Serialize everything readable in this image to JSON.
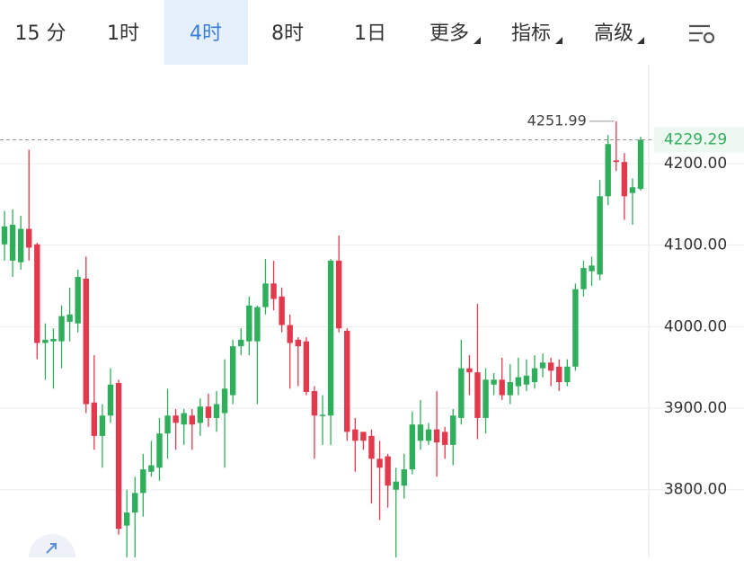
{
  "toolbar": {
    "tabs": [
      "15 分",
      "1时",
      "4时",
      "8时",
      "1日",
      "更多",
      "指标",
      "高级"
    ],
    "selected": 2
  },
  "chart_data": {
    "type": "candlestick",
    "open": [
      4101,
      4081,
      4079,
      4120,
      4101,
      3980,
      3982,
      3982,
      4006,
      4004,
      4059,
      3907,
      3866,
      3891,
      3931,
      3756,
      3772,
      3796,
      3822,
      3827,
      3869,
      3891,
      3880,
      3891,
      3882,
      3902,
      3888,
      3894,
      3916,
      3976,
      3982,
      3982,
      4024,
      4053,
      4037,
      4002,
      3984,
      3982,
      3921,
      3891,
      3891,
      4081,
      3995,
      3874,
      3871,
      3866,
      3838,
      3841,
      3800,
      3805,
      3825,
      3860,
      3860,
      3874,
      3871,
      3855,
      3888,
      3949,
      3944,
      3888,
      3929,
      3935,
      3916,
      3927,
      3929,
      3932,
      3949,
      3956,
      3951,
      3932,
      3951,
      4046,
      4068,
      4064,
      4160,
      4204,
      4202,
      4164,
      4169
    ],
    "high": [
      4142,
      4144,
      4136,
      4217,
      4103,
      4004,
      3998,
      4026,
      4048,
      4070,
      4086,
      3965,
      3905,
      3949,
      3935,
      3800,
      3816,
      3844,
      3860,
      3888,
      3924,
      3899,
      3899,
      3899,
      3912,
      3918,
      3921,
      3960,
      3984,
      3998,
      4037,
      4026,
      4083,
      4081,
      4048,
      4015,
      3987,
      3987,
      3927,
      3916,
      4083,
      4112,
      3998,
      3888,
      3871,
      3874,
      3860,
      3844,
      3827,
      3844,
      3896,
      3910,
      3882,
      3921,
      3877,
      3899,
      3984,
      3965,
      4028,
      3949,
      3943,
      3962,
      3954,
      3962,
      3960,
      3965,
      3967,
      3962,
      3960,
      3960,
      4053,
      4081,
      4086,
      4180,
      4235,
      4251.99,
      4213,
      4182,
      4233
    ],
    "low": [
      4081,
      4061,
      4070,
      4081,
      3960,
      3935,
      3924,
      3949,
      3982,
      3993,
      3894,
      3849,
      3827,
      3882,
      3745,
      3717,
      3717,
      3767,
      3816,
      3811,
      3838,
      3849,
      3855,
      3849,
      3866,
      3877,
      3871,
      3827,
      3905,
      3965,
      3965,
      3905,
      4015,
      4020,
      3993,
      3924,
      3927,
      3916,
      3838,
      3855,
      3855,
      3993,
      3860,
      3822,
      3849,
      3783,
      3763,
      3778,
      3717,
      3789,
      3819,
      3849,
      3855,
      3816,
      3838,
      3830,
      3880,
      3916,
      3862,
      3869,
      3916,
      3910,
      3905,
      3916,
      3921,
      3924,
      3938,
      3927,
      3921,
      3927,
      3946,
      4037,
      4050,
      4057,
      4149,
      4191,
      4131,
      4125,
      4167
    ],
    "close": [
      4123,
      4125,
      4120,
      4097,
      3980,
      3984,
      3985,
      4013,
      4015,
      4061,
      3905,
      3866,
      3891,
      3929,
      3752,
      3772,
      3796,
      3825,
      3830,
      3869,
      3891,
      3882,
      3894,
      3880,
      3902,
      3888,
      3905,
      3924,
      3976,
      3984,
      4026,
      4024,
      4053,
      4034,
      4002,
      3980,
      3976,
      3920,
      3891,
      3892,
      4081,
      3998,
      3871,
      3860,
      3860,
      3838,
      3827,
      3805,
      3810,
      3825,
      3880,
      3880,
      3874,
      3858,
      3855,
      3891,
      3949,
      3944,
      3888,
      3935,
      3935,
      3916,
      3932,
      3938,
      3940,
      3949,
      3956,
      3946,
      3932,
      3951,
      4046,
      4072,
      4075,
      4160,
      4224,
      4202,
      4160,
      4171,
      4229.29
    ],
    "ylim": [
      3717,
      4318
    ],
    "yticks": [
      {
        "value": 3800,
        "label": "3800.00"
      },
      {
        "value": 3900,
        "label": "3900.00"
      },
      {
        "value": 4000,
        "label": "4000.00"
      },
      {
        "value": 4100,
        "label": "4100.00"
      },
      {
        "value": 4200,
        "label": "4200.00"
      }
    ],
    "up_color": "#2fae5b",
    "down_color": "#e2394d",
    "grid": true
  }
}
